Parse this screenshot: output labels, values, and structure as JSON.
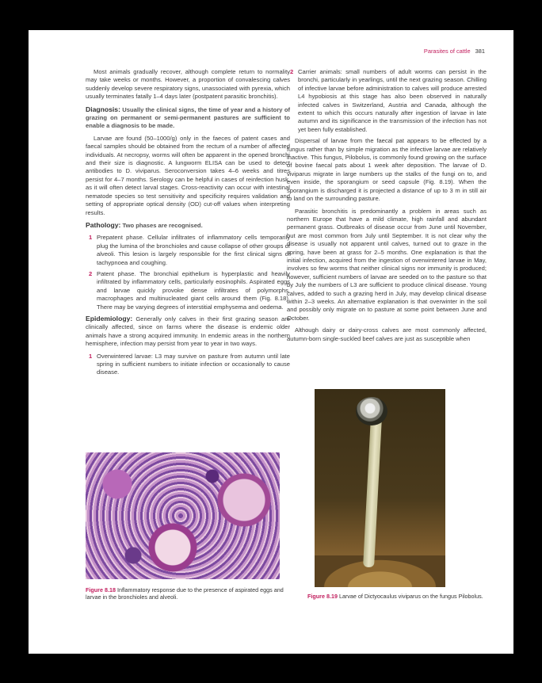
{
  "header": {
    "title": "Parasites of cattle",
    "page_number": "381"
  },
  "left_column": {
    "p1": "Most animals gradually recover, although complete return to normality may take weeks or months. However, a proportion of convalescing calves suddenly develop severe respiratory signs, unassociated with pyrexia, which usually terminates fatally 1–4 days later (postpatent parasitic bronchitis).",
    "diagnosis_heading": "Diagnosis:",
    "diagnosis_lead": "Usually the clinical signs, the time of year and a history of grazing on permanent or semi-permanent pastures are sufficient to enable a diagnosis to be made.",
    "p2": "Larvae are found (50–1000/g) only in the faeces of patent cases and faecal samples should be obtained from the rectum of a number of affected individuals. At necropsy, worms will often be apparent in the opened bronchi and their size is diagnostic. A lungworm ELISA can be used to detect antibodies to D. viviparus. Seroconversion takes 4–6 weeks and titres persist for 4–7 months. Serology can be helpful in cases of reinfection husk, as it will often detect larval stages. Cross-reactivity can occur with intestinal nematode species so test sensitivity and specificity requires validation and setting of appropriate optical density (OD) cut-off values when interpreting results.",
    "pathology_heading": "Pathology:",
    "pathology_lead": "Two phases are recognised.",
    "pathology_items": [
      {
        "n": "1",
        "text": "Prepatent phase. Cellular infiltrates of inflammatory cells temporarily plug the lumina of the bronchioles and cause collapse of other groups of alveoli. This lesion is largely responsible for the first clinical signs of tachypnoea and coughing."
      },
      {
        "n": "2",
        "text": "Patent phase. The bronchial epithelium is hyperplastic and heavily infiltrated by inflammatory cells, particularly eosinophils. Aspirated eggs and larvae quickly provoke dense infiltrates of polymorphs, macrophages and multinucleated giant cells around them (Fig. 8.18). There may be varying degrees of interstitial emphysema and oedema."
      }
    ],
    "epidemiology_heading": "Epidemiology:",
    "epidemiology_lead": "Generally only calves in their first grazing season are clinically affected, since on farms where the disease is endemic older animals have a strong acquired immunity. In endemic areas in the northern hemisphere, infection may persist from year to year in two ways.",
    "epi_items": [
      {
        "n": "1",
        "text": "Overwintered larvae: L3 may survive on pasture from autumn until late spring in sufficient numbers to initiate infection or occasionally to cause disease."
      }
    ]
  },
  "right_column": {
    "items": [
      {
        "n": "2",
        "text": "Carrier animals: small numbers of adult worms can persist in the bronchi, particularly in yearlings, until the next grazing season. Chilling of infective larvae before administration to calves will produce arrested L4 hypobiosis at this stage has also been observed in naturally infected calves in Switzerland, Austria and Canada, although the extent to which this occurs naturally after ingestion of larvae in late autumn and its significance in the transmission of the infection has not yet been fully established."
      }
    ],
    "p1": "Dispersal of larvae from the faecal pat appears to be effected by a fungus rather than by simple migration as the infective larvae are relatively inactive. This fungus, Pilobolus, is commonly found growing on the surface of bovine faecal pats about 1 week after deposition. The larvae of D. viviparus migrate in large numbers up the stalks of the fungi on to, and even inside, the sporangium or seed capsule (Fig. 8.19). When the sporangium is discharged it is projected a distance of up to 3 m in still air to land on the surrounding pasture.",
    "p2": "Parasitic bronchitis is predominantly a problem in areas such as northern Europe that have a mild climate, high rainfall and abundant permanent grass. Outbreaks of disease occur from June until November, but are most common from July until September. It is not clear why the disease is usually not apparent until calves, turned out to graze in the spring, have been at grass for 2–5 months. One explanation is that the initial infection, acquired from the ingestion of overwintered larvae in May, involves so few worms that neither clinical signs nor immunity is produced; however, sufficient numbers of larvae are seeded on to the pasture so that by July the numbers of L3 are sufficient to produce clinical disease. Young calves, added to such a grazing herd in July, may develop clinical disease within 2–3 weeks. An alternative explanation is that overwinter in the soil and possibly only migrate on to pasture at some point between June and October.",
    "p3": "Although dairy or dairy-cross calves are most commonly affected, autumn-born single-suckled beef calves are just as susceptible when"
  },
  "figures": [
    {
      "label": "Figure 8.18",
      "caption": "Inflammatory response due to the presence of aspirated eggs and larvae in the bronchioles and alveoli."
    },
    {
      "label": "Figure 8.19",
      "caption": "Larvae of Dictyocaulus viviparus on the fungus Pilobolus."
    }
  ]
}
